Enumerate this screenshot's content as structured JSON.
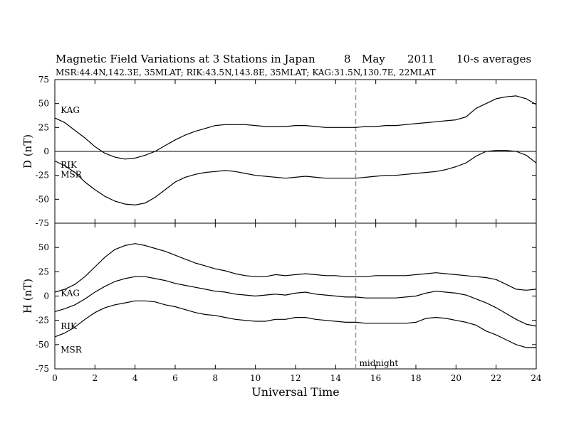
{
  "figure": {
    "title_parts": [
      "Magnetic Field Variations at 3 Stations in Japan",
      "8",
      "May",
      "2011",
      "10-s averages"
    ],
    "subtitle": "MSR:44.4N,142.3E, 35MLAT;  RIK:43.5N,143.8E, 35MLAT;  KAG:31.5N,130.7E, 22MLAT"
  },
  "chart_data": [
    {
      "id": "d-panel",
      "type": "line",
      "ylabel": "D (nT)",
      "ylim": [
        -75,
        75
      ],
      "yticks": [
        -75,
        -50,
        -25,
        0,
        25,
        50,
        75
      ],
      "xlim": [
        0,
        24
      ],
      "zero_line": true,
      "series": [
        {
          "name": "KAG",
          "x": [
            0,
            0.5,
            1,
            1.5,
            2,
            2.5,
            3,
            3.5,
            4,
            4.5,
            5,
            5.5,
            6,
            6.5,
            7,
            7.5,
            8,
            8.5,
            9,
            9.5,
            10,
            10.5,
            11,
            11.5,
            12,
            12.5,
            13,
            13.5,
            14,
            14.5,
            15,
            15.5,
            16,
            16.5,
            17,
            17.5,
            18,
            18.5,
            19,
            19.5,
            20,
            20.5,
            21,
            21.5,
            22,
            22.5,
            23,
            23.5,
            24
          ],
          "y": [
            35,
            30,
            22,
            14,
            5,
            -2,
            -6,
            -8,
            -7,
            -4,
            0,
            6,
            12,
            17,
            21,
            24,
            27,
            28,
            28,
            28,
            27,
            26,
            26,
            26,
            27,
            27,
            26,
            25,
            25,
            25,
            25,
            26,
            26,
            27,
            27,
            28,
            29,
            30,
            31,
            32,
            33,
            36,
            45,
            50,
            55,
            57,
            58,
            55,
            49
          ]
        },
        {
          "name": "RIK",
          "x": [
            0,
            0.5,
            1,
            1.5,
            2,
            2.5,
            3,
            3.5,
            4,
            4.5,
            5,
            5.5,
            6,
            6.5,
            7,
            7.5,
            8,
            8.5,
            9,
            9.5,
            10,
            10.5,
            11,
            11.5,
            12,
            12.5,
            13,
            13.5,
            14,
            14.5,
            15,
            15.5,
            16,
            16.5,
            17,
            17.5,
            18,
            18.5,
            19,
            19.5,
            20,
            20.5,
            21,
            21.5,
            22,
            22.5,
            23,
            23.5,
            24
          ],
          "y": [
            -10,
            -15,
            -22,
            -32,
            -40,
            -47,
            -52,
            -55,
            -56,
            -54,
            -48,
            -40,
            -32,
            -27,
            -24,
            -22,
            -21,
            -20,
            -21,
            -23,
            -25,
            -26,
            -27,
            -28,
            -27,
            -26,
            -27,
            -28,
            -28,
            -28,
            -28,
            -27,
            -26,
            -25,
            -25,
            -24,
            -23,
            -22,
            -21,
            -19,
            -16,
            -12,
            -5,
            0,
            1,
            1,
            0,
            -4,
            -12
          ]
        }
      ]
    },
    {
      "id": "h-panel",
      "type": "line",
      "ylabel": "H (nT)",
      "ylim": [
        -75,
        75
      ],
      "yticks": [
        -75,
        -50,
        -25,
        0,
        25,
        50
      ],
      "xlim": [
        0,
        24
      ],
      "xticks": [
        0,
        2,
        4,
        6,
        8,
        10,
        12,
        14,
        16,
        18,
        20,
        22,
        24
      ],
      "xlabel": "Universal Time",
      "marker": {
        "x": 15,
        "label": "midnight"
      },
      "series": [
        {
          "name": "KAG",
          "x": [
            0,
            0.5,
            1,
            1.5,
            2,
            2.5,
            3,
            3.5,
            4,
            4.5,
            5,
            5.5,
            6,
            6.5,
            7,
            7.5,
            8,
            8.5,
            9,
            9.5,
            10,
            10.5,
            11,
            11.5,
            12,
            12.5,
            13,
            13.5,
            14,
            14.5,
            15,
            15.5,
            16,
            16.5,
            17,
            17.5,
            18,
            18.5,
            19,
            19.5,
            20,
            20.5,
            21,
            21.5,
            22,
            22.5,
            23,
            23.5,
            24
          ],
          "y": [
            4,
            7,
            12,
            20,
            30,
            40,
            48,
            52,
            54,
            52,
            49,
            46,
            42,
            38,
            34,
            31,
            28,
            26,
            23,
            21,
            20,
            20,
            22,
            21,
            22,
            23,
            22,
            21,
            21,
            20,
            20,
            20,
            21,
            21,
            21,
            21,
            22,
            23,
            24,
            23,
            22,
            21,
            20,
            19,
            17,
            12,
            7,
            6,
            7
          ]
        },
        {
          "name": "RIK",
          "x": [
            0,
            0.5,
            1,
            1.5,
            2,
            2.5,
            3,
            3.5,
            4,
            4.5,
            5,
            5.5,
            6,
            6.5,
            7,
            7.5,
            8,
            8.5,
            9,
            9.5,
            10,
            10.5,
            11,
            11.5,
            12,
            12.5,
            13,
            13.5,
            14,
            14.5,
            15,
            15.5,
            16,
            16.5,
            17,
            17.5,
            18,
            18.5,
            19,
            19.5,
            20,
            20.5,
            21,
            21.5,
            22,
            22.5,
            23,
            23.5,
            24
          ],
          "y": [
            -16,
            -13,
            -9,
            -3,
            4,
            10,
            15,
            18,
            20,
            20,
            18,
            16,
            13,
            11,
            9,
            7,
            5,
            4,
            2,
            1,
            0,
            1,
            2,
            1,
            3,
            4,
            2,
            1,
            0,
            -1,
            -1,
            -2,
            -2,
            -2,
            -2,
            -1,
            0,
            3,
            5,
            4,
            3,
            1,
            -3,
            -7,
            -12,
            -18,
            -24,
            -29,
            -31
          ]
        },
        {
          "name": "MSR",
          "x": [
            0,
            0.5,
            1,
            1.5,
            2,
            2.5,
            3,
            3.5,
            4,
            4.5,
            5,
            5.5,
            6,
            6.5,
            7,
            7.5,
            8,
            8.5,
            9,
            9.5,
            10,
            10.5,
            11,
            11.5,
            12,
            12.5,
            13,
            13.5,
            14,
            14.5,
            15,
            15.5,
            16,
            16.5,
            17,
            17.5,
            18,
            18.5,
            19,
            19.5,
            20,
            20.5,
            21,
            21.5,
            22,
            22.5,
            23,
            23.5,
            24
          ],
          "y": [
            -42,
            -38,
            -32,
            -24,
            -17,
            -12,
            -9,
            -7,
            -5,
            -5,
            -6,
            -9,
            -11,
            -14,
            -17,
            -19,
            -20,
            -22,
            -24,
            -25,
            -26,
            -26,
            -24,
            -24,
            -22,
            -22,
            -24,
            -25,
            -26,
            -27,
            -27,
            -28,
            -28,
            -28,
            -28,
            -28,
            -27,
            -23,
            -22,
            -23,
            -25,
            -27,
            -30,
            -36,
            -40,
            -45,
            -50,
            -53,
            -53
          ]
        }
      ]
    }
  ]
}
